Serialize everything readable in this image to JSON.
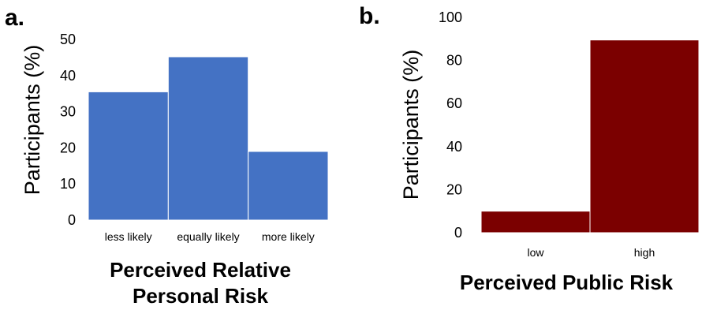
{
  "chart_data": [
    {
      "type": "bar",
      "panel_label": "a.",
      "categories": [
        "less likely",
        "equally likely",
        "more likely"
      ],
      "values": [
        35.5,
        45.2,
        19.0
      ],
      "ylabel": "Participants (%)",
      "xlabel_lines": [
        "Perceived Relative",
        "Personal Risk"
      ],
      "ylim": [
        0,
        50
      ],
      "yticks": [
        0,
        10,
        20,
        30,
        40,
        50
      ],
      "color": "#4472C4",
      "grid": false
    },
    {
      "type": "bar",
      "panel_label": "b.",
      "categories": [
        "low",
        "high"
      ],
      "values": [
        10.0,
        89.5
      ],
      "ylabel": "Participants (%)",
      "xlabel_lines": [
        "Perceived Public Risk"
      ],
      "ylim": [
        0,
        100
      ],
      "yticks": [
        0,
        20,
        40,
        60,
        80,
        100
      ],
      "color": "#7B0000",
      "grid": false
    }
  ]
}
